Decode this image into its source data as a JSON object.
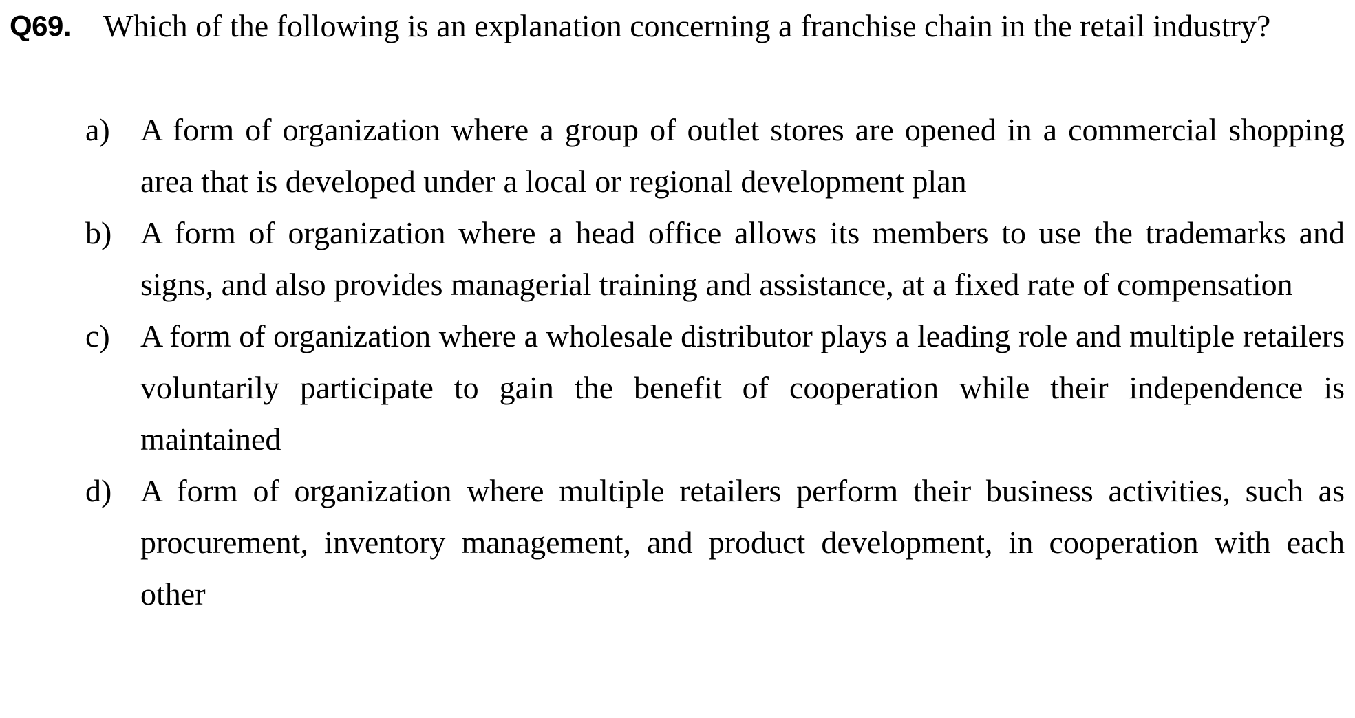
{
  "question": {
    "number": "Q69.",
    "text": "Which of the following is an explanation concerning a franchise chain in the retail industry?"
  },
  "choices": [
    {
      "label": "a)",
      "text": "A form of organization where a group of outlet stores are opened in a commercial shopping area that is developed under a local or regional development plan"
    },
    {
      "label": "b)",
      "text": "A form of organization where a head office allows its members to use the trademarks and signs, and also provides managerial training and assistance, at a fixed rate of compensation"
    },
    {
      "label": "c)",
      "text": "A form of organization where a wholesale distributor plays a leading role and multiple retailers voluntarily participate to gain the benefit of cooperation while their independence is maintained"
    },
    {
      "label": "d)",
      "text": "A form of organization where multiple retailers perform their business activities, such as procurement, inventory management, and product development, in cooperation with each other"
    }
  ]
}
